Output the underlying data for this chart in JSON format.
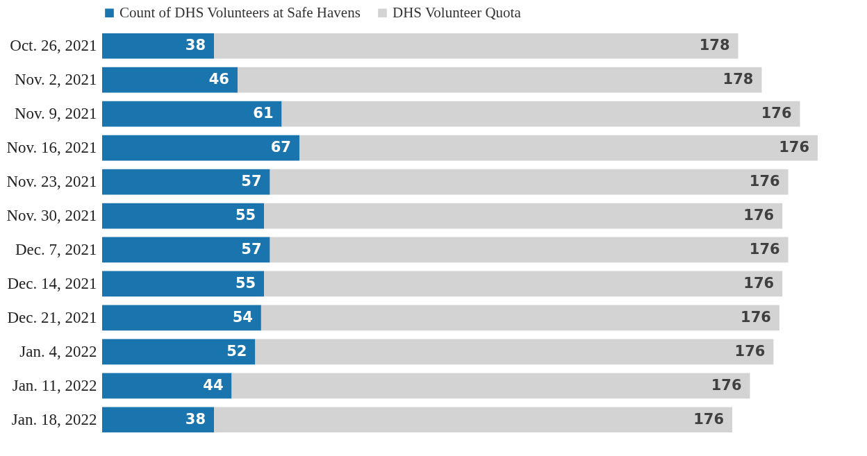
{
  "chart_data": {
    "type": "bar",
    "orientation": "horizontal",
    "stacked": true,
    "data_labels": true,
    "legend": "top",
    "tick_labels": "y",
    "categories": [
      "Oct. 26, 2021",
      "Nov. 2, 2021",
      "Nov. 9, 2021",
      "Nov. 16, 2021",
      "Nov. 23, 2021",
      "Nov. 30, 2021",
      "Dec. 7, 2021",
      "Dec. 14, 2021",
      "Dec. 21, 2021",
      "Jan. 4, 2022",
      "Jan. 11, 2022",
      "Jan. 18, 2022"
    ],
    "series": [
      {
        "name": "Count of DHS Volunteers at Safe Havens",
        "color": "#1a75ae",
        "values": [
          38,
          46,
          61,
          67,
          57,
          55,
          57,
          55,
          54,
          52,
          44,
          38
        ]
      },
      {
        "name": "DHS Volunteer Quota",
        "color": "#d3d3d3",
        "values": [
          178,
          178,
          176,
          176,
          176,
          176,
          176,
          176,
          176,
          176,
          176,
          176
        ]
      }
    ]
  }
}
